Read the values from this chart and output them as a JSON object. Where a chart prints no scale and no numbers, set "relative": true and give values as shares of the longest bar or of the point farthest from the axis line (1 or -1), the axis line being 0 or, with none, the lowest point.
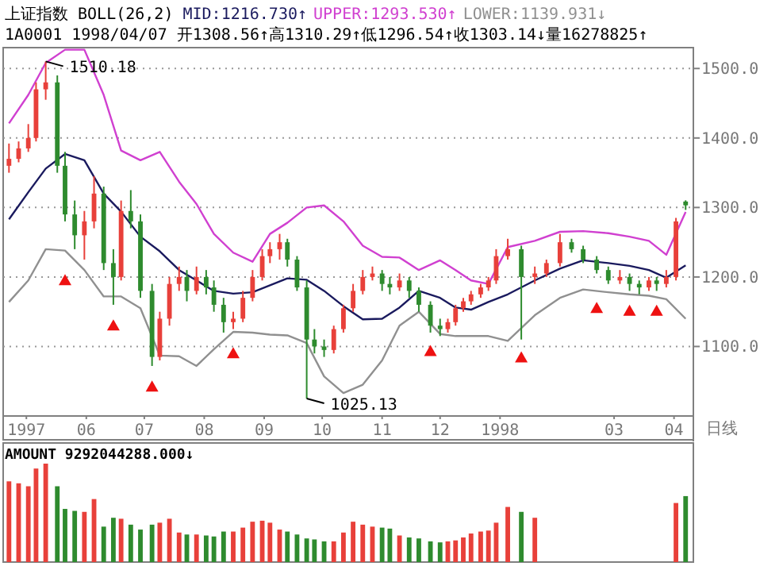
{
  "chart_data": [
    {
      "type": "candlestick",
      "title": "上证指数 BOLL(26,2)",
      "subtitle": "1A0001 1998/04/07 开1308.56↑高1310.29↑低1296.54↑收1303.14↓量16278825↑",
      "x": [
        "1997-04-22",
        "1997-04-27",
        "1997-05-02",
        "1997-05-06",
        "1997-05-11",
        "1997-05-17",
        "1997-05-21",
        "1997-05-26",
        "1997-05-31",
        "1997-06-05",
        "1997-06-10",
        "1997-06-15",
        "1997-06-19",
        "1997-06-24",
        "1997-06-29",
        "1997-07-05",
        "1997-07-09",
        "1997-07-14",
        "1997-07-19",
        "1997-07-23",
        "1997-07-28",
        "1997-08-02",
        "1997-08-06",
        "1997-08-11",
        "1997-08-16",
        "1997-08-21",
        "1997-08-26",
        "1997-08-31",
        "1997-09-04",
        "1997-09-09",
        "1997-09-13",
        "1997-09-18",
        "1997-09-23",
        "1997-09-27",
        "1997-10-02",
        "1997-10-07",
        "1997-10-12",
        "1997-10-17",
        "1997-10-22",
        "1997-10-27",
        "1997-11-01",
        "1997-11-05",
        "1997-11-10",
        "1997-11-15",
        "1997-11-20",
        "1997-11-26",
        "1997-12-01",
        "1997-12-05",
        "1997-12-09",
        "1997-12-13",
        "1997-12-17",
        "1997-12-22",
        "1997-12-26",
        "1997-12-30",
        "1998-01-05",
        "1998-01-12",
        "1998-01-19",
        "1998-01-25",
        "1998-02-01",
        "1998-02-07",
        "1998-02-13",
        "1998-02-20",
        "1998-02-26",
        "1998-03-04",
        "1998-03-09",
        "1998-03-14",
        "1998-03-19",
        "1998-03-23",
        "1998-03-28",
        "1998-04-02",
        "1998-04-07"
      ],
      "ohlc": [
        [
          1360,
          1392,
          1350,
          1370
        ],
        [
          1370,
          1395,
          1365,
          1385
        ],
        [
          1385,
          1420,
          1380,
          1400
        ],
        [
          1400,
          1480,
          1395,
          1470
        ],
        [
          1470,
          1510.18,
          1455,
          1480
        ],
        [
          1480,
          1490,
          1350,
          1360
        ],
        [
          1360,
          1380,
          1280,
          1290
        ],
        [
          1290,
          1310,
          1240,
          1260
        ],
        [
          1260,
          1295,
          1225,
          1280
        ],
        [
          1280,
          1345,
          1270,
          1320
        ],
        [
          1320,
          1330,
          1210,
          1220
        ],
        [
          1220,
          1240,
          1160,
          1200
        ],
        [
          1200,
          1310,
          1195,
          1295
        ],
        [
          1295,
          1325,
          1270,
          1280
        ],
        [
          1280,
          1290,
          1170,
          1180
        ],
        [
          1180,
          1190,
          1072,
          1085
        ],
        [
          1085,
          1150,
          1080,
          1140
        ],
        [
          1140,
          1200,
          1130,
          1190
        ],
        [
          1190,
          1215,
          1180,
          1200
        ],
        [
          1200,
          1210,
          1165,
          1180
        ],
        [
          1180,
          1215,
          1175,
          1200
        ],
        [
          1200,
          1210,
          1175,
          1185
        ],
        [
          1185,
          1195,
          1150,
          1160
        ],
        [
          1160,
          1170,
          1120,
          1135
        ],
        [
          1135,
          1150,
          1125,
          1140
        ],
        [
          1140,
          1180,
          1135,
          1170
        ],
        [
          1170,
          1210,
          1165,
          1200
        ],
        [
          1200,
          1240,
          1195,
          1230
        ],
        [
          1230,
          1250,
          1220,
          1240
        ],
        [
          1240,
          1262,
          1225,
          1250
        ],
        [
          1250,
          1255,
          1215,
          1225
        ],
        [
          1225,
          1230,
          1180,
          1185
        ],
        [
          1185,
          1195,
          1025.13,
          1110
        ],
        [
          1110,
          1125,
          1090,
          1100
        ],
        [
          1100,
          1110,
          1085,
          1095
        ],
        [
          1095,
          1130,
          1090,
          1125
        ],
        [
          1125,
          1160,
          1120,
          1155
        ],
        [
          1155,
          1190,
          1150,
          1180
        ],
        [
          1180,
          1210,
          1175,
          1200
        ],
        [
          1200,
          1215,
          1195,
          1205
        ],
        [
          1205,
          1210,
          1180,
          1190
        ],
        [
          1190,
          1200,
          1175,
          1185
        ],
        [
          1185,
          1205,
          1180,
          1195
        ],
        [
          1195,
          1200,
          1170,
          1180
        ],
        [
          1180,
          1185,
          1150,
          1160
        ],
        [
          1160,
          1165,
          1120,
          1130
        ],
        [
          1130,
          1140,
          1115,
          1125
        ],
        [
          1125,
          1140,
          1120,
          1135
        ],
        [
          1135,
          1160,
          1130,
          1155
        ],
        [
          1155,
          1170,
          1150,
          1165
        ],
        [
          1165,
          1180,
          1160,
          1175
        ],
        [
          1175,
          1190,
          1170,
          1185
        ],
        [
          1185,
          1200,
          1180,
          1195
        ],
        [
          1195,
          1240,
          1190,
          1230
        ],
        [
          1230,
          1255,
          1225,
          1240
        ],
        [
          1240,
          1245,
          1110,
          1200
        ],
        [
          1200,
          1215,
          1190,
          1205
        ],
        [
          1205,
          1225,
          1200,
          1220
        ],
        [
          1220,
          1262,
          1215,
          1250
        ],
        [
          1250,
          1255,
          1235,
          1240
        ],
        [
          1240,
          1245,
          1220,
          1225
        ],
        [
          1225,
          1230,
          1205,
          1210
        ],
        [
          1210,
          1215,
          1190,
          1195
        ],
        [
          1195,
          1210,
          1190,
          1200
        ],
        [
          1200,
          1205,
          1180,
          1190
        ],
        [
          1190,
          1195,
          1175,
          1185
        ],
        [
          1185,
          1200,
          1180,
          1195
        ],
        [
          1195,
          1200,
          1180,
          1190
        ],
        [
          1190,
          1210,
          1185,
          1200
        ],
        [
          1200,
          1285,
          1195,
          1280
        ],
        [
          1308.56,
          1310.29,
          1296.54,
          1303.14
        ]
      ],
      "colors": [
        "#e8403a",
        "#e8403a",
        "#e8403a",
        "#e8403a",
        "#e8403a",
        "#2e8b2e",
        "#2e8b2e",
        "#2e8b2e",
        "#e8403a",
        "#e8403a",
        "#2e8b2e",
        "#2e8b2e",
        "#e8403a",
        "#2e8b2e",
        "#2e8b2e",
        "#2e8b2e",
        "#e8403a",
        "#e8403a",
        "#e8403a",
        "#2e8b2e",
        "#e8403a",
        "#2e8b2e",
        "#2e8b2e",
        "#2e8b2e",
        "#e8403a",
        "#e8403a",
        "#e8403a",
        "#e8403a",
        "#e8403a",
        "#e8403a",
        "#2e8b2e",
        "#2e8b2e",
        "#2e8b2e",
        "#2e8b2e",
        "#2e8b2e",
        "#e8403a",
        "#e8403a",
        "#e8403a",
        "#e8403a",
        "#e8403a",
        "#2e8b2e",
        "#2e8b2e",
        "#e8403a",
        "#2e8b2e",
        "#2e8b2e",
        "#2e8b2e",
        "#2e8b2e",
        "#e8403a",
        "#e8403a",
        "#e8403a",
        "#e8403a",
        "#e8403a",
        "#e8403a",
        "#e8403a",
        "#e8403a",
        "#2e8b2e",
        "#e8403a",
        "#e8403a",
        "#e8403a",
        "#2e8b2e",
        "#2e8b2e",
        "#2e8b2e",
        "#2e8b2e",
        "#e8403a",
        "#2e8b2e",
        "#2e8b2e",
        "#e8403a",
        "#2e8b2e",
        "#e8403a",
        "#e8403a",
        "#2e8b2e"
      ],
      "series": [
        {
          "type": "line",
          "name": "MID:1216.730↑",
          "color": "#1a1a5e",
          "x": [
            "1997-04-22",
            "1997-05-02",
            "1997-05-11",
            "1997-05-21",
            "1997-05-31",
            "1997-06-10",
            "1997-06-19",
            "1997-06-29",
            "1997-07-09",
            "1997-07-19",
            "1997-07-28",
            "1997-08-06",
            "1997-08-16",
            "1997-08-26",
            "1997-09-04",
            "1997-09-13",
            "1997-09-23",
            "1997-10-02",
            "1997-10-12",
            "1997-10-22",
            "1997-11-01",
            "1997-11-10",
            "1997-11-20",
            "1997-12-01",
            "1997-12-09",
            "1997-12-17",
            "1997-12-26",
            "1998-01-05",
            "1998-01-19",
            "1998-02-01",
            "1998-02-13",
            "1998-02-26",
            "1998-03-09",
            "1998-03-19",
            "1998-03-28",
            "1998-04-07"
          ],
          "values": [
            1283,
            1322,
            1356,
            1377,
            1368,
            1320,
            1294,
            1258,
            1237,
            1210,
            1195,
            1180,
            1176,
            1178,
            1188,
            1198,
            1196,
            1180,
            1158,
            1139,
            1140,
            1156,
            1180,
            1170,
            1156,
            1153,
            1164,
            1175,
            1195,
            1212,
            1224,
            1220,
            1216,
            1210,
            1199,
            1216.73
          ]
        },
        {
          "type": "line",
          "name": "UPPER:1293.530↑",
          "color": "#d040d0",
          "x": [
            "1997-04-22",
            "1997-05-02",
            "1997-05-11",
            "1997-05-21",
            "1997-05-31",
            "1997-06-10",
            "1997-06-19",
            "1997-06-29",
            "1997-07-09",
            "1997-07-19",
            "1997-07-28",
            "1997-08-06",
            "1997-08-16",
            "1997-08-26",
            "1997-09-04",
            "1997-09-13",
            "1997-09-23",
            "1997-10-02",
            "1997-10-12",
            "1997-10-22",
            "1997-11-01",
            "1997-11-10",
            "1997-11-20",
            "1997-12-01",
            "1997-12-09",
            "1997-12-17",
            "1997-12-26",
            "1998-01-05",
            "1998-01-19",
            "1998-02-01",
            "1998-02-13",
            "1998-02-26",
            "1998-03-09",
            "1998-03-19",
            "1998-03-28",
            "1998-04-07"
          ],
          "values": [
            1421,
            1462,
            1508,
            1527,
            1527,
            1462,
            1382,
            1368,
            1380,
            1337,
            1305,
            1262,
            1235,
            1222,
            1262,
            1278,
            1300,
            1303,
            1280,
            1245,
            1229,
            1228,
            1210,
            1224,
            1210,
            1195,
            1190,
            1243,
            1252,
            1265,
            1266,
            1263,
            1258,
            1252,
            1232,
            1293.53
          ]
        },
        {
          "type": "line",
          "name": "LOWER:1139.931↓",
          "color": "#909090",
          "x": [
            "1997-04-22",
            "1997-05-02",
            "1997-05-11",
            "1997-05-21",
            "1997-05-31",
            "1997-06-10",
            "1997-06-19",
            "1997-06-29",
            "1997-07-09",
            "1997-07-19",
            "1997-07-28",
            "1997-08-06",
            "1997-08-16",
            "1997-08-26",
            "1997-09-04",
            "1997-09-13",
            "1997-09-23",
            "1997-10-02",
            "1997-10-12",
            "1997-10-22",
            "1997-11-01",
            "1997-11-10",
            "1997-11-20",
            "1997-12-01",
            "1997-12-09",
            "1997-12-17",
            "1997-12-26",
            "1998-01-05",
            "1998-01-19",
            "1998-02-01",
            "1998-02-13",
            "1998-02-26",
            "1998-03-09",
            "1998-03-19",
            "1998-03-28",
            "1998-04-07"
          ],
          "values": [
            1164,
            1195,
            1240,
            1238,
            1210,
            1172,
            1172,
            1155,
            1087,
            1086,
            1072,
            1096,
            1121,
            1120,
            1117,
            1116,
            1105,
            1057,
            1033,
            1045,
            1080,
            1130,
            1150,
            1118,
            1115,
            1115,
            1115,
            1108,
            1145,
            1170,
            1182,
            1178,
            1175,
            1173,
            1168,
            1139.931
          ]
        },
        {
          "type": "scatter",
          "color": "#ee1111",
          "marker": "triangle",
          "x": [
            "1997-05-21",
            "1997-06-15",
            "1997-07-05",
            "1997-08-16",
            "1997-11-26",
            "1998-01-12",
            "1998-02-20",
            "1998-03-09",
            "1998-03-23"
          ],
          "values": [
            1195,
            1130,
            1042,
            1090,
            1093,
            1084,
            1155,
            1151,
            1151
          ]
        }
      ],
      "xlim": [
        "1997-04-19",
        "1998-04-11"
      ],
      "ylim": [
        1000,
        1530
      ],
      "xticks": [
        {
          "value": "1997-05-01",
          "label": "1997"
        },
        {
          "value": "1997-06-01",
          "label": "06"
        },
        {
          "value": "1997-07-01",
          "label": "07"
        },
        {
          "value": "1997-08-01",
          "label": "08"
        },
        {
          "value": "1997-09-01",
          "label": "09"
        },
        {
          "value": "1997-10-01",
          "label": "10"
        },
        {
          "value": "1997-11-01",
          "label": "11"
        },
        {
          "value": "1997-12-01",
          "label": "12"
        },
        {
          "value": "1998-01-01",
          "label": "1998"
        },
        {
          "value": "1998-03-01",
          "label": "03"
        },
        {
          "value": "1998-04-01",
          "label": "04"
        }
      ],
      "yticks": [
        {
          "value": 1100,
          "label": "1100.0"
        },
        {
          "value": 1200,
          "label": "1200.0"
        },
        {
          "value": 1300,
          "label": "1300.0"
        },
        {
          "value": 1400,
          "label": "1400.0"
        },
        {
          "value": 1500,
          "label": "1500.0"
        }
      ],
      "grid": "y",
      "annotations": [
        {
          "text": "1510.18",
          "x": "1997-05-11",
          "y": 1510.18
        },
        {
          "text": "1025.13",
          "x": "1997-09-23",
          "y": 1025.13
        },
        "日线"
      ]
    },
    {
      "type": "bar",
      "title": "AMOUNT 9292044288.000↓",
      "relative": true,
      "x": [
        "1997-04-22",
        "1997-04-27",
        "1997-05-02",
        "1997-05-06",
        "1997-05-11",
        "1997-05-17",
        "1997-05-21",
        "1997-05-26",
        "1997-05-31",
        "1997-06-05",
        "1997-06-10",
        "1997-06-15",
        "1997-06-19",
        "1997-06-24",
        "1997-06-29",
        "1997-07-05",
        "1997-07-09",
        "1997-07-14",
        "1997-07-19",
        "1997-07-23",
        "1997-07-28",
        "1997-08-02",
        "1997-08-06",
        "1997-08-11",
        "1997-08-16",
        "1997-08-21",
        "1997-08-26",
        "1997-08-31",
        "1997-09-04",
        "1997-09-09",
        "1997-09-13",
        "1997-09-18",
        "1997-09-23",
        "1997-09-27",
        "1997-10-02",
        "1997-10-07",
        "1997-10-12",
        "1997-10-17",
        "1997-10-22",
        "1997-10-27",
        "1997-11-01",
        "1997-11-05",
        "1997-11-10",
        "1997-11-15",
        "1997-11-20",
        "1997-11-26",
        "1997-12-01",
        "1997-12-05",
        "1997-12-09",
        "1997-12-13",
        "1997-12-17",
        "1997-12-22",
        "1997-12-26",
        "1997-12-30",
        "1998-01-05",
        "1998-01-12",
        "1998-01-19",
        "1998-01-25",
        "1998-02-01",
        "1998-02-07",
        "1998-02-13",
        "1998-02-20",
        "1998-02-26",
        "1998-03-04",
        "1998-03-09",
        "1998-03-14",
        "1998-03-19",
        "1998-03-23",
        "1998-03-28",
        "1998-04-02",
        "1998-04-07"
      ],
      "values": [
        0.82,
        0.8,
        0.77,
        0.95,
        1,
        0.77,
        0.54,
        0.52,
        0.51,
        0.64,
        0.36,
        0.45,
        0.44,
        0.38,
        0.33,
        0.38,
        0.4,
        0.44,
        0.3,
        0.28,
        0.28,
        0.27,
        0.26,
        0.31,
        0.31,
        0.35,
        0.41,
        0.42,
        0.4,
        0.33,
        0.31,
        0.28,
        0.24,
        0.23,
        0.21,
        0.21,
        0.3,
        0.41,
        0.38,
        0.36,
        0.35,
        0.34,
        0.27,
        0.25,
        0.24,
        0.21,
        0.2,
        0.21,
        0.22,
        0.25,
        0.29,
        0.31,
        0.32,
        0.4,
        0.56,
        0.51,
        0.45,
        null,
        null,
        null,
        null,
        null,
        null,
        null,
        null,
        null,
        null,
        null,
        null,
        0.6,
        0.67
      ],
      "colors": [
        "#e8403a",
        "#e8403a",
        "#e8403a",
        "#e8403a",
        "#e8403a",
        "#2e8b2e",
        "#2e8b2e",
        "#2e8b2e",
        "#e8403a",
        "#e8403a",
        "#2e8b2e",
        "#2e8b2e",
        "#e8403a",
        "#2e8b2e",
        "#2e8b2e",
        "#2e8b2e",
        "#e8403a",
        "#e8403a",
        "#e8403a",
        "#2e8b2e",
        "#e8403a",
        "#2e8b2e",
        "#2e8b2e",
        "#2e8b2e",
        "#e8403a",
        "#e8403a",
        "#e8403a",
        "#e8403a",
        "#e8403a",
        "#e8403a",
        "#2e8b2e",
        "#2e8b2e",
        "#2e8b2e",
        "#2e8b2e",
        "#2e8b2e",
        "#e8403a",
        "#e8403a",
        "#e8403a",
        "#e8403a",
        "#e8403a",
        "#2e8b2e",
        "#2e8b2e",
        "#e8403a",
        "#2e8b2e",
        "#2e8b2e",
        "#2e8b2e",
        "#2e8b2e",
        "#e8403a",
        "#e8403a",
        "#e8403a",
        "#e8403a",
        "#e8403a",
        "#e8403a",
        "#e8403a",
        "#e8403a",
        "#2e8b2e",
        "#e8403a",
        "#e8403a",
        "#e8403a",
        "#2e8b2e",
        "#2e8b2e",
        "#2e8b2e",
        "#2e8b2e",
        "#e8403a",
        "#2e8b2e",
        "#2e8b2e",
        "#e8403a",
        "#2e8b2e",
        "#e8403a",
        "#e8403a",
        "#2e8b2e"
      ],
      "xlim": [
        "1997-04-19",
        "1998-04-11"
      ]
    }
  ]
}
